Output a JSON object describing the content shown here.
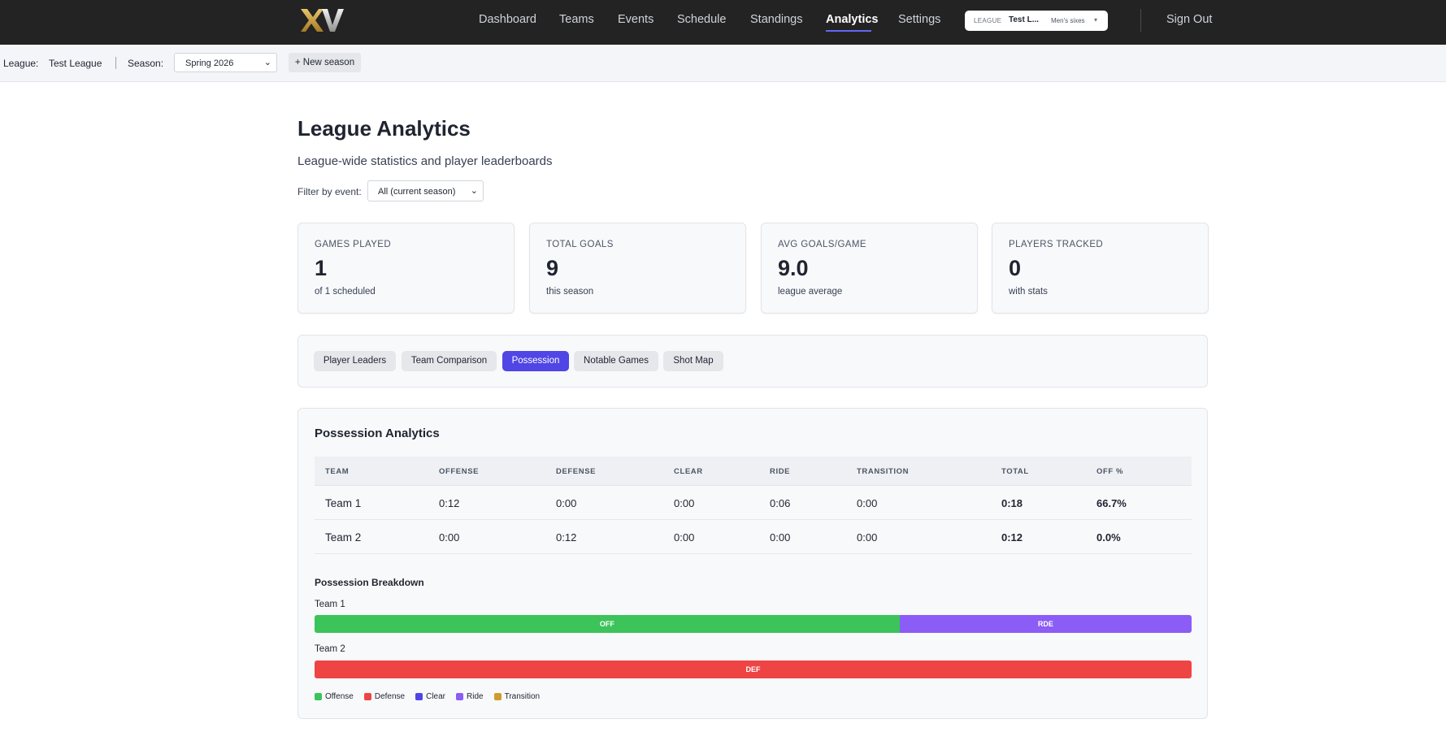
{
  "nav": {
    "logo": "XV",
    "items": [
      "Dashboard",
      "Teams",
      "Events",
      "Schedule",
      "Standings",
      "Analytics",
      "Settings"
    ],
    "active": "Analytics",
    "league_pill": {
      "label": "LEAGUE",
      "name": "Test L...",
      "division": "Men's sixes"
    },
    "sign_out": "Sign Out"
  },
  "subbar": {
    "league_label": "League:",
    "league_value": "Test League",
    "season_label": "Season:",
    "season_value": "Spring 2026",
    "new_season": "+ New season"
  },
  "header": {
    "title": "League Analytics",
    "subtitle": "League-wide statistics and player leaderboards",
    "filter_label": "Filter by event:",
    "filter_value": "All (current season)"
  },
  "stats": [
    {
      "label": "GAMES PLAYED",
      "value": "1",
      "sub": "of 1 scheduled"
    },
    {
      "label": "TOTAL GOALS",
      "value": "9",
      "sub": "this season"
    },
    {
      "label": "AVG GOALS/GAME",
      "value": "9.0",
      "sub": "league average"
    },
    {
      "label": "PLAYERS TRACKED",
      "value": "0",
      "sub": "with stats"
    }
  ],
  "tabs": [
    "Player Leaders",
    "Team Comparison",
    "Possession",
    "Notable Games",
    "Shot Map"
  ],
  "active_tab": "Possession",
  "possession": {
    "title": "Possession Analytics",
    "columns": [
      "TEAM",
      "OFFENSE",
      "DEFENSE",
      "CLEAR",
      "RIDE",
      "TRANSITION",
      "TOTAL",
      "OFF %"
    ],
    "rows": [
      [
        "Team 1",
        "0:12",
        "0:00",
        "0:00",
        "0:06",
        "0:00",
        "0:18",
        "66.7%"
      ],
      [
        "Team 2",
        "0:00",
        "0:12",
        "0:00",
        "0:00",
        "0:00",
        "0:12",
        "0.0%"
      ]
    ],
    "breakdown_title": "Possession Breakdown",
    "breakdown": [
      {
        "team": "Team 1",
        "segments": [
          {
            "label": "OFF",
            "share": 0.667,
            "color": "#3cc35a"
          },
          {
            "label": "RDE",
            "share": 0.333,
            "color": "#8b5cf6"
          }
        ]
      },
      {
        "team": "Team 2",
        "segments": [
          {
            "label": "DEF",
            "share": 1.0,
            "color": "#ef4444"
          }
        ]
      }
    ],
    "legend": [
      {
        "label": "Offense",
        "color": "#3cc35a"
      },
      {
        "label": "Defense",
        "color": "#ef4444"
      },
      {
        "label": "Clear",
        "color": "#4f46e5"
      },
      {
        "label": "Ride",
        "color": "#8b5cf6"
      },
      {
        "label": "Transition",
        "color": "#d09a2e"
      }
    ]
  }
}
